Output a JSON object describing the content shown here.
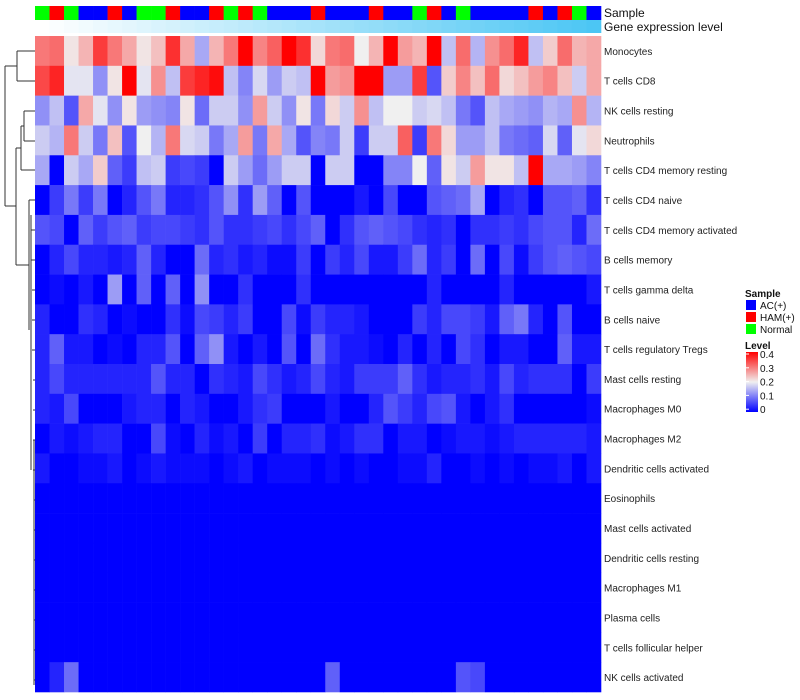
{
  "chart_data": {
    "type": "heatmap",
    "title": "",
    "annotation_labels": {
      "sample": "Sample",
      "gene_expression": "Gene expression level"
    },
    "gene_expression_gradient": {
      "low": "#FFFFFF",
      "high": "#4CC6F4"
    },
    "samples": [
      "Normal",
      "HAM(+)",
      "Normal",
      "AC(+)",
      "AC(+)",
      "HAM(+)",
      "AC(+)",
      "Normal",
      "Normal",
      "HAM(+)",
      "AC(+)",
      "AC(+)",
      "HAM(+)",
      "Normal",
      "HAM(+)",
      "Normal",
      "AC(+)",
      "AC(+)",
      "AC(+)",
      "HAM(+)",
      "AC(+)",
      "AC(+)",
      "AC(+)",
      "HAM(+)",
      "AC(+)",
      "AC(+)",
      "Normal",
      "HAM(+)",
      "AC(+)",
      "Normal",
      "AC(+)",
      "AC(+)",
      "AC(+)",
      "AC(+)",
      "HAM(+)",
      "AC(+)",
      "HAM(+)",
      "Normal",
      "AC(+)"
    ],
    "rows": [
      "Monocytes",
      "T cells CD8",
      "NK cells resting",
      "Neutrophils",
      "T cells CD4 memory resting",
      "T cells CD4 naive",
      "T cells CD4 memory activated",
      "B cells memory",
      "T cells gamma delta",
      "B cells naive",
      "T cells regulatory  Tregs",
      "Mast cells resting",
      "Macrophages M0",
      "Macrophages M2",
      "Dendritic cells activated",
      "Eosinophils",
      "Mast cells activated",
      "Dendritic cells resting",
      "Macrophages M1",
      "Plasma cells",
      "T cells follicular helper",
      "NK cells activated"
    ],
    "values": [
      [
        0.3,
        0.31,
        0.21,
        0.25,
        0.35,
        0.3,
        0.26,
        0.21,
        0.24,
        0.36,
        0.26,
        0.14,
        0.25,
        0.3,
        0.4,
        0.29,
        0.32,
        0.4,
        0.36,
        0.22,
        0.3,
        0.31,
        0.2,
        0.25,
        0.4,
        0.27,
        0.25,
        0.4,
        0.16,
        0.31,
        0.15,
        0.28,
        0.31,
        0.37,
        0.16,
        0.23,
        0.31,
        0.25,
        0.26
      ],
      [
        0.34,
        0.37,
        0.19,
        0.19,
        0.12,
        0.21,
        0.4,
        0.19,
        0.28,
        0.16,
        0.35,
        0.37,
        0.39,
        0.16,
        0.11,
        0.18,
        0.13,
        0.17,
        0.16,
        0.4,
        0.27,
        0.28,
        0.4,
        0.4,
        0.13,
        0.13,
        0.35,
        0.07,
        0.23,
        0.29,
        0.24,
        0.31,
        0.22,
        0.24,
        0.27,
        0.29,
        0.24,
        0.17,
        0.26
      ],
      [
        0.12,
        0.16,
        0.07,
        0.26,
        0.19,
        0.12,
        0.21,
        0.13,
        0.12,
        0.11,
        0.21,
        0.09,
        0.17,
        0.17,
        0.12,
        0.27,
        0.17,
        0.12,
        0.21,
        0.1,
        0.22,
        0.17,
        0.28,
        0.16,
        0.2,
        0.2,
        0.17,
        0.18,
        0.16,
        0.1,
        0.07,
        0.16,
        0.14,
        0.13,
        0.12,
        0.15,
        0.14,
        0.28,
        0.15
      ],
      [
        0.17,
        0.15,
        0.3,
        0.17,
        0.1,
        0.24,
        0.07,
        0.2,
        0.15,
        0.3,
        0.18,
        0.17,
        0.1,
        0.14,
        0.27,
        0.1,
        0.26,
        0.14,
        0.07,
        0.11,
        0.1,
        0.17,
        0.05,
        0.17,
        0.17,
        0.32,
        0.05,
        0.3,
        0.22,
        0.13,
        0.13,
        0.16,
        0.1,
        0.09,
        0.08,
        0.18,
        0.08,
        0.19,
        0.22
      ],
      [
        0.14,
        0,
        0.17,
        0.14,
        0.23,
        0.08,
        0.05,
        0.16,
        0.17,
        0.05,
        0.06,
        0.05,
        0,
        0.17,
        0.13,
        0.09,
        0.13,
        0.17,
        0.17,
        0,
        0.17,
        0.17,
        0,
        0,
        0.11,
        0.11,
        0.2,
        0.08,
        0.21,
        0.17,
        0.27,
        0.21,
        0.21,
        0.16,
        0.4,
        0.14,
        0.14,
        0.13,
        0.11
      ],
      [
        0,
        0.05,
        0.1,
        0.05,
        0.1,
        0,
        0.03,
        0.07,
        0.1,
        0.03,
        0.03,
        0.04,
        0.07,
        0.12,
        0.04,
        0.13,
        0.08,
        0,
        0.07,
        0,
        0,
        0,
        0.02,
        0,
        0.06,
        0,
        0,
        0.07,
        0.08,
        0.09,
        0.14,
        0,
        0.03,
        0.04,
        0,
        0.07,
        0.07,
        0.08,
        0.04
      ],
      [
        0.07,
        0.06,
        0,
        0.08,
        0.05,
        0.07,
        0.08,
        0.05,
        0.06,
        0.06,
        0.05,
        0.04,
        0.07,
        0.04,
        0.04,
        0.05,
        0.06,
        0.04,
        0.06,
        0.08,
        0,
        0.04,
        0.07,
        0.08,
        0.07,
        0.06,
        0.04,
        0.03,
        0.04,
        0,
        0.04,
        0.04,
        0.05,
        0.04,
        0.06,
        0.07,
        0.07,
        0.03,
        0.09
      ],
      [
        0,
        0.03,
        0.06,
        0.03,
        0.03,
        0.02,
        0.03,
        0.08,
        0.03,
        0,
        0,
        0.09,
        0.03,
        0.04,
        0.02,
        0.03,
        0.01,
        0.01,
        0.05,
        0,
        0.05,
        0.03,
        0.06,
        0.02,
        0.02,
        0.05,
        0.09,
        0.03,
        0.05,
        0,
        0.09,
        0,
        0.06,
        0.01,
        0.05,
        0.07,
        0.08,
        0.07,
        0.06
      ],
      [
        0,
        0.01,
        0,
        0.02,
        0,
        0.13,
        0,
        0.08,
        0,
        0.08,
        0,
        0.12,
        0,
        0,
        0.04,
        0,
        0,
        0,
        0.04,
        0,
        0,
        0,
        0,
        0,
        0,
        0,
        0,
        0.03,
        0,
        0,
        0,
        0,
        0.03,
        0,
        0,
        0,
        0,
        0,
        0.02
      ],
      [
        0.03,
        0,
        0,
        0.04,
        0.03,
        0,
        0.01,
        0,
        0,
        0.04,
        0.01,
        0.06,
        0.05,
        0.03,
        0.05,
        0,
        0,
        0.06,
        0.01,
        0.05,
        0.03,
        0.03,
        0.02,
        0,
        0,
        0,
        0.05,
        0.03,
        0.06,
        0.06,
        0.05,
        0.02,
        0.08,
        0.1,
        0.03,
        0,
        0.07,
        0,
        0
      ],
      [
        0.03,
        0.08,
        0.02,
        0.02,
        0,
        0.01,
        0,
        0.03,
        0.03,
        0.07,
        0,
        0.08,
        0.12,
        0.02,
        0,
        0.02,
        0,
        0.07,
        0,
        0.09,
        0.04,
        0.02,
        0.02,
        0.01,
        0,
        0.03,
        0,
        0.03,
        0,
        0.06,
        0.04,
        0,
        0.02,
        0.02,
        0,
        0,
        0.08,
        0.02,
        0.02
      ],
      [
        0.03,
        0.06,
        0.03,
        0.03,
        0.03,
        0.03,
        0.03,
        0.03,
        0.07,
        0.03,
        0.03,
        0,
        0.04,
        0.03,
        0.02,
        0.06,
        0.04,
        0.02,
        0.03,
        0.06,
        0.03,
        0.02,
        0.05,
        0.05,
        0.05,
        0.08,
        0.04,
        0.02,
        0.03,
        0.03,
        0.04,
        0.02,
        0.06,
        0.03,
        0.04,
        0.04,
        0.04,
        0,
        0.05
      ],
      [
        0.03,
        0.02,
        0.06,
        0,
        0,
        0,
        0.02,
        0.03,
        0.03,
        0,
        0.03,
        0.02,
        0,
        0,
        0.02,
        0.04,
        0.05,
        0,
        0,
        0,
        0.02,
        0,
        0,
        0.03,
        0.07,
        0.05,
        0.03,
        0.06,
        0.07,
        0.02,
        0,
        0.02,
        0.04,
        0,
        0,
        0,
        0,
        0,
        0.01
      ],
      [
        0,
        0.02,
        0.01,
        0.02,
        0.03,
        0.03,
        0,
        0,
        0.06,
        0.01,
        0,
        0.03,
        0.01,
        0.02,
        0,
        0.05,
        0,
        0.03,
        0.03,
        0.04,
        0.01,
        0.02,
        0.04,
        0.04,
        0,
        0.02,
        0.02,
        0,
        0.01,
        0.02,
        0.02,
        0.01,
        0.02,
        0.03,
        0.03,
        0.03,
        0.03,
        0.03,
        0.02
      ],
      [
        0.02,
        0,
        0,
        0.01,
        0.01,
        0.02,
        0,
        0.01,
        0.02,
        0.01,
        0.01,
        0.01,
        0,
        0.01,
        0.02,
        0,
        0.01,
        0.01,
        0.01,
        0,
        0.01,
        0,
        0.01,
        0,
        0,
        0.01,
        0.01,
        0.03,
        0,
        0,
        0.01,
        0,
        0.01,
        0,
        0.01,
        0.01,
        0.02,
        0,
        0.02
      ],
      [
        0,
        0,
        0,
        0,
        0,
        0,
        0,
        0,
        0,
        0,
        0,
        0,
        0,
        0,
        0,
        0,
        0,
        0,
        0,
        0,
        0,
        0,
        0,
        0,
        0,
        0,
        0,
        0,
        0,
        0,
        0,
        0,
        0,
        0,
        0,
        0,
        0,
        0,
        0
      ],
      [
        0,
        0,
        0,
        0,
        0,
        0,
        0,
        0,
        0,
        0,
        0,
        0,
        0,
        0,
        0,
        0,
        0,
        0,
        0,
        0,
        0,
        0,
        0,
        0,
        0,
        0,
        0,
        0,
        0,
        0,
        0,
        0,
        0,
        0,
        0,
        0,
        0,
        0,
        0
      ],
      [
        0,
        0,
        0,
        0,
        0,
        0,
        0,
        0,
        0,
        0,
        0,
        0,
        0,
        0,
        0,
        0,
        0,
        0,
        0,
        0,
        0,
        0,
        0,
        0,
        0,
        0,
        0,
        0,
        0,
        0,
        0,
        0,
        0,
        0,
        0,
        0,
        0,
        0,
        0
      ],
      [
        0,
        0,
        0,
        0,
        0,
        0,
        0,
        0,
        0,
        0,
        0,
        0,
        0,
        0,
        0,
        0,
        0,
        0,
        0,
        0,
        0,
        0,
        0,
        0,
        0,
        0,
        0,
        0,
        0,
        0,
        0,
        0,
        0,
        0,
        0,
        0,
        0,
        0,
        0
      ],
      [
        0,
        0,
        0,
        0,
        0,
        0,
        0,
        0,
        0,
        0,
        0,
        0,
        0,
        0,
        0,
        0,
        0,
        0,
        0,
        0,
        0,
        0,
        0,
        0,
        0,
        0,
        0,
        0,
        0,
        0,
        0,
        0,
        0,
        0,
        0,
        0,
        0,
        0,
        0
      ],
      [
        0,
        0,
        0,
        0,
        0,
        0,
        0,
        0,
        0,
        0,
        0,
        0,
        0,
        0,
        0,
        0,
        0,
        0,
        0,
        0,
        0,
        0,
        0,
        0,
        0,
        0,
        0,
        0,
        0,
        0,
        0,
        0,
        0,
        0,
        0,
        0,
        0,
        0,
        0
      ],
      [
        0,
        0.03,
        0.09,
        0,
        0,
        0,
        0,
        0,
        0,
        0,
        0,
        0,
        0,
        0,
        0,
        0,
        0,
        0,
        0,
        0,
        0.08,
        0,
        0,
        0,
        0,
        0,
        0,
        0,
        0,
        0.07,
        0.06,
        0,
        0,
        0,
        0,
        0,
        0,
        0,
        0
      ]
    ],
    "color_scale": {
      "min": 0,
      "mid": 0.2,
      "max": 0.4,
      "low": "#0000FF",
      "midcolor": "#F0F0F0",
      "high": "#FF0000"
    },
    "legend": {
      "sample_title": "Sample",
      "sample_entries": [
        {
          "label": "AC(+)",
          "color": "#0000FF"
        },
        {
          "label": "HAM(+)",
          "color": "#FF0000"
        },
        {
          "label": "Normal",
          "color": "#00FF00"
        }
      ],
      "level_title": "Level",
      "level_ticks": [
        "0.4",
        "0.3",
        "0.2",
        "0.1",
        "0"
      ],
      "placement": "right"
    }
  }
}
